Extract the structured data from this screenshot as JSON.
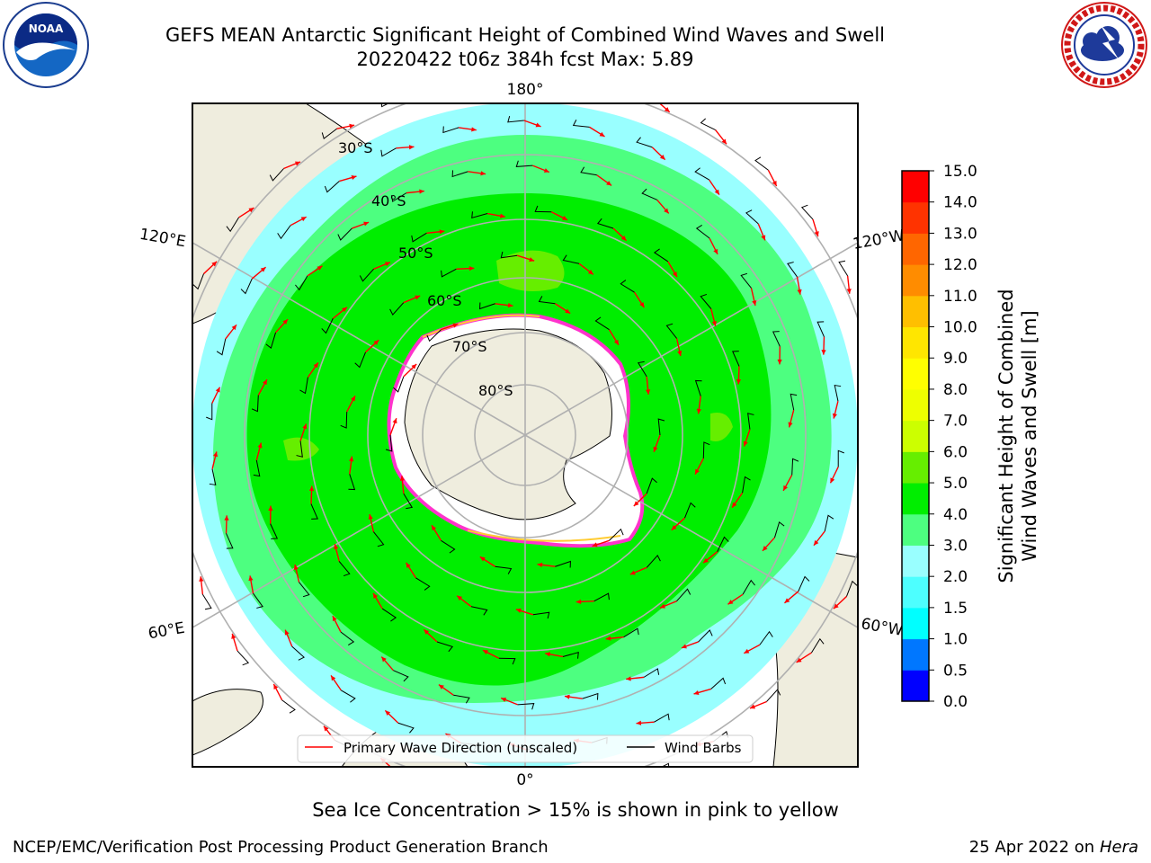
{
  "header": {
    "title_line1": "GEFS MEAN Antarctic Significant Height of Combined Wind Waves and Swell",
    "title_line2": "20220422 t06z 384h fcst   Max: 5.89"
  },
  "logos": {
    "left": {
      "name": "noaa-logo",
      "text": "NOAA",
      "ring_text": "NATIONAL OCEANIC AND ATMOSPHERIC ADMINISTRATION · U.S. DEPARTMENT OF COMMERCE"
    },
    "right": {
      "name": "nws-logo",
      "ring_text": "NATIONAL WEATHER SERVICE"
    }
  },
  "map": {
    "longitude_labels": [
      "180°",
      "120°E",
      "120°W",
      "60°E",
      "60°W",
      "0°"
    ],
    "latitude_labels": [
      "30°S",
      "40°S",
      "50°S",
      "60°S",
      "70°S",
      "80°S"
    ],
    "legend": {
      "wave_label": "Primary Wave Direction (unscaled)",
      "barb_label": "Wind Barbs",
      "wave_color": "#ff0000",
      "barb_color": "#000000"
    },
    "ocean_colors": {
      "c2_3": "#99ffff",
      "c3_4": "#4dff80",
      "c4_5": "#00ee00",
      "c5_6": "#66ee00",
      "land": "#efedde",
      "ice": "#ffffff",
      "ice_edge": "#ff33cc"
    }
  },
  "colorbar": {
    "label_line1": "Significant Height of Combined",
    "label_line2": "Wind Waves and Swell [m]",
    "ticks": [
      "0.0",
      "0.5",
      "1.0",
      "1.5",
      "2.0",
      "3.0",
      "4.0",
      "5.0",
      "6.0",
      "7.0",
      "8.0",
      "9.0",
      "10.0",
      "11.0",
      "12.0",
      "13.0",
      "14.0",
      "15.0"
    ],
    "colors": [
      "#0000ff",
      "#0077ff",
      "#00ffff",
      "#4dffff",
      "#99ffff",
      "#4dff80",
      "#00ee00",
      "#66ee00",
      "#ccff00",
      "#eeff00",
      "#ffff00",
      "#ffe600",
      "#ffbf00",
      "#ff8c00",
      "#ff6600",
      "#ff3300",
      "#ff0000"
    ]
  },
  "note": "Sea Ice Concentration > 15% is shown in pink to yellow",
  "footer": {
    "left": "NCEP/EMC/Verification Post Processing Product Generation Branch",
    "right_date": "25 Apr 2022 on ",
    "right_host": "Hera"
  }
}
